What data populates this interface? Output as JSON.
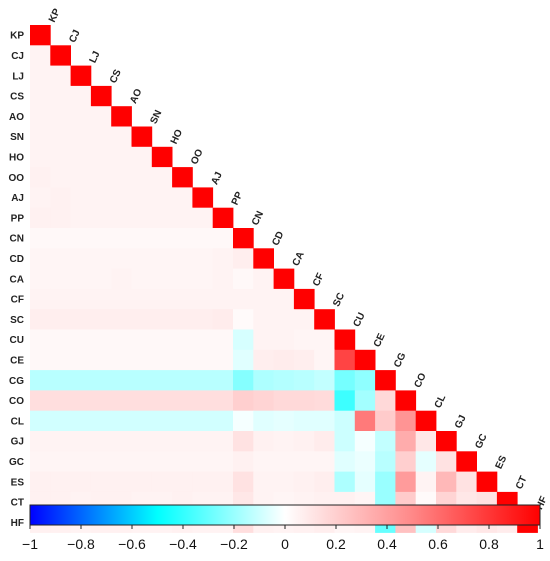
{
  "chart_data": {
    "type": "heatmap",
    "variables": [
      "KP",
      "CJ",
      "LJ",
      "CS",
      "AO",
      "SN",
      "HO",
      "OO",
      "AJ",
      "PP",
      "CN",
      "CD",
      "CA",
      "CF",
      "SC",
      "CU",
      "CE",
      "CG",
      "CO",
      "CL",
      "GJ",
      "GC",
      "ES",
      "CT",
      "HF"
    ],
    "lower_triangle_only": true,
    "diagonal_value": 1,
    "value_range": [
      -1,
      1
    ],
    "colorbar": {
      "ticks": [
        -1,
        -0.8,
        -0.6,
        -0.4,
        -0.2,
        0,
        0.2,
        0.4,
        0.6,
        0.8,
        1
      ],
      "tick_labels": [
        "−1",
        "−0.8",
        "−0.6",
        "−0.4",
        "−0.2",
        "0",
        "0.2",
        "0.4",
        "0.6",
        "0.8",
        "1"
      ],
      "colors": [
        "#0000ff",
        "#00ffff",
        "#ffffff",
        "#ff8888",
        "#ff0000"
      ]
    },
    "matrix": [
      [
        1
      ],
      [
        0.05,
        1
      ],
      [
        0.05,
        0.05,
        1
      ],
      [
        0.05,
        0.05,
        0.05,
        1
      ],
      [
        0.05,
        0.05,
        0.05,
        0.05,
        1
      ],
      [
        0.05,
        0.05,
        0.05,
        0.05,
        0.05,
        1
      ],
      [
        0.05,
        0.05,
        0.05,
        0.05,
        0.05,
        0.05,
        1
      ],
      [
        0.06,
        0.05,
        0.05,
        0.05,
        0.05,
        0.05,
        0.05,
        1
      ],
      [
        0.05,
        0.06,
        0.05,
        0.05,
        0.05,
        0.05,
        0.05,
        0.05,
        1
      ],
      [
        0.06,
        0.06,
        0.05,
        0.05,
        0.05,
        0.05,
        0.05,
        0.05,
        0.05,
        1
      ],
      [
        0.03,
        0.03,
        0.03,
        0.03,
        0.03,
        0.03,
        0.03,
        0.03,
        0.03,
        0.03,
        1
      ],
      [
        0.04,
        0.04,
        0.04,
        0.04,
        0.04,
        0.04,
        0.04,
        0.04,
        0.04,
        0.05,
        0.07,
        1
      ],
      [
        0.04,
        0.04,
        0.04,
        0.04,
        0.05,
        0.04,
        0.04,
        0.04,
        0.04,
        0.05,
        0.03,
        0.05,
        1
      ],
      [
        0.05,
        0.05,
        0.05,
        0.05,
        0.05,
        0.05,
        0.05,
        0.05,
        0.05,
        0.05,
        0.05,
        0.05,
        0.05,
        1
      ],
      [
        0.07,
        0.07,
        0.07,
        0.07,
        0.07,
        0.07,
        0.07,
        0.07,
        0.07,
        0.08,
        0.02,
        0.05,
        0.05,
        0.05,
        1
      ],
      [
        0.03,
        0.03,
        0.03,
        0.03,
        0.03,
        0.03,
        0.03,
        0.03,
        0.03,
        0.03,
        -0.08,
        0.05,
        0.05,
        0.04,
        0.04,
        1
      ],
      [
        0.03,
        0.03,
        0.03,
        0.03,
        0.03,
        0.03,
        0.03,
        0.03,
        0.03,
        0.03,
        -0.06,
        0.07,
        0.08,
        0.07,
        0.04,
        0.75,
        1
      ],
      [
        -0.14,
        -0.14,
        -0.14,
        -0.14,
        -0.14,
        -0.14,
        -0.14,
        -0.14,
        -0.14,
        -0.14,
        -0.24,
        -0.16,
        -0.15,
        -0.14,
        -0.12,
        -0.27,
        -0.22,
        1
      ],
      [
        0.14,
        0.14,
        0.14,
        0.14,
        0.14,
        0.14,
        0.14,
        0.14,
        0.14,
        0.14,
        0.2,
        0.18,
        0.16,
        0.16,
        0.15,
        -0.38,
        -0.18,
        0.16,
        1
      ],
      [
        -0.09,
        -0.09,
        -0.09,
        -0.09,
        -0.09,
        -0.09,
        -0.09,
        -0.09,
        -0.09,
        -0.09,
        -0.02,
        -0.06,
        -0.05,
        -0.06,
        -0.06,
        -0.1,
        0.55,
        0.22,
        0.45,
        1
      ],
      [
        0.05,
        0.05,
        0.05,
        0.05,
        0.05,
        0.05,
        0.05,
        0.05,
        0.05,
        0.05,
        0.12,
        0.06,
        0.05,
        0.06,
        0.08,
        -0.1,
        -0.02,
        -0.12,
        0.35,
        0.1,
        1
      ],
      [
        0.04,
        0.04,
        0.04,
        0.04,
        0.04,
        0.04,
        0.04,
        0.04,
        0.04,
        0.04,
        0.06,
        0.04,
        0.04,
        0.04,
        0.04,
        -0.06,
        -0.04,
        -0.14,
        0.2,
        -0.05,
        0.12,
        1
      ],
      [
        0.06,
        0.06,
        0.06,
        0.06,
        0.06,
        0.06,
        0.06,
        0.06,
        0.06,
        0.06,
        0.12,
        0.05,
        0.05,
        0.06,
        0.07,
        -0.16,
        -0.05,
        -0.2,
        0.42,
        0.05,
        0.3,
        0.12,
        1
      ],
      [
        0.06,
        0.06,
        0.05,
        0.06,
        0.06,
        0.05,
        0.05,
        0.06,
        0.05,
        0.05,
        0.1,
        0.05,
        0.04,
        0.05,
        0.06,
        0.06,
        0.04,
        -0.2,
        0.22,
        0.02,
        0.18,
        0.1,
        0.12,
        1
      ],
      [
        0.06,
        0.06,
        0.05,
        0.06,
        0.06,
        0.05,
        0.05,
        0.06,
        0.05,
        0.05,
        0.14,
        0.06,
        0.05,
        0.06,
        0.07,
        0.04,
        0.05,
        -0.3,
        0.26,
        -0.08,
        0.16,
        0.08,
        0.1,
        0.08,
        1
      ]
    ]
  }
}
